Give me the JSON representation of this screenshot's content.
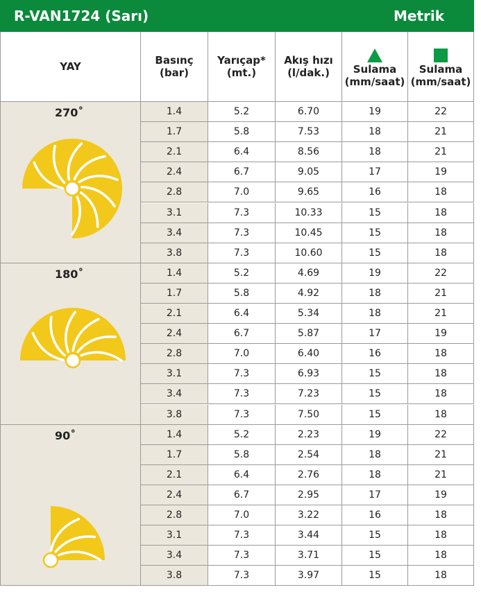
{
  "header": {
    "title": "R-VAN1724 (Sarı)",
    "unit_system": "Metrik"
  },
  "table": {
    "columns": [
      [
        "YAY"
      ],
      [
        "Basınç",
        "(bar)"
      ],
      [
        "Yarıçap*",
        "(mt.)"
      ],
      [
        "Akış hızı",
        "(l/dak.)"
      ],
      [
        "Sulama",
        "(mm/saat)"
      ],
      [
        "Sulama",
        "(mm/saat)"
      ]
    ],
    "groups": [
      {
        "arc": "270˚",
        "rows": [
          [
            "1.4",
            "5.2",
            "6.70",
            "19",
            "22"
          ],
          [
            "1.7",
            "5.8",
            "7.53",
            "18",
            "21"
          ],
          [
            "2.1",
            "6.4",
            "8.56",
            "18",
            "21"
          ],
          [
            "2.4",
            "6.7",
            "9.05",
            "17",
            "19"
          ],
          [
            "2.8",
            "7.0",
            "9.65",
            "16",
            "18"
          ],
          [
            "3.1",
            "7.3",
            "10.33",
            "15",
            "18"
          ],
          [
            "3.4",
            "7.3",
            "10.45",
            "15",
            "18"
          ],
          [
            "3.8",
            "7.3",
            "10.60",
            "15",
            "18"
          ]
        ]
      },
      {
        "arc": "180˚",
        "rows": [
          [
            "1.4",
            "5.2",
            "4.69",
            "19",
            "22"
          ],
          [
            "1.7",
            "5.8",
            "4.92",
            "18",
            "21"
          ],
          [
            "2.1",
            "6.4",
            "5.34",
            "18",
            "21"
          ],
          [
            "2.4",
            "6.7",
            "5.87",
            "17",
            "19"
          ],
          [
            "2.8",
            "7.0",
            "6.40",
            "16",
            "18"
          ],
          [
            "3.1",
            "7.3",
            "6.93",
            "15",
            "18"
          ],
          [
            "3.4",
            "7.3",
            "7.23",
            "15",
            "18"
          ],
          [
            "3.8",
            "7.3",
            "7.50",
            "15",
            "18"
          ]
        ]
      },
      {
        "arc": "90˚",
        "rows": [
          [
            "1.4",
            "5.2",
            "2.23",
            "19",
            "22"
          ],
          [
            "1.7",
            "5.8",
            "2.54",
            "18",
            "21"
          ],
          [
            "2.1",
            "6.4",
            "2.76",
            "18",
            "21"
          ],
          [
            "2.4",
            "6.7",
            "2.95",
            "17",
            "19"
          ],
          [
            "2.8",
            "7.0",
            "3.22",
            "16",
            "18"
          ],
          [
            "3.1",
            "7.3",
            "3.44",
            "15",
            "18"
          ],
          [
            "3.4",
            "7.3",
            "3.71",
            "15",
            "18"
          ],
          [
            "3.8",
            "7.3",
            "3.97",
            "15",
            "18"
          ]
        ]
      }
    ]
  }
}
